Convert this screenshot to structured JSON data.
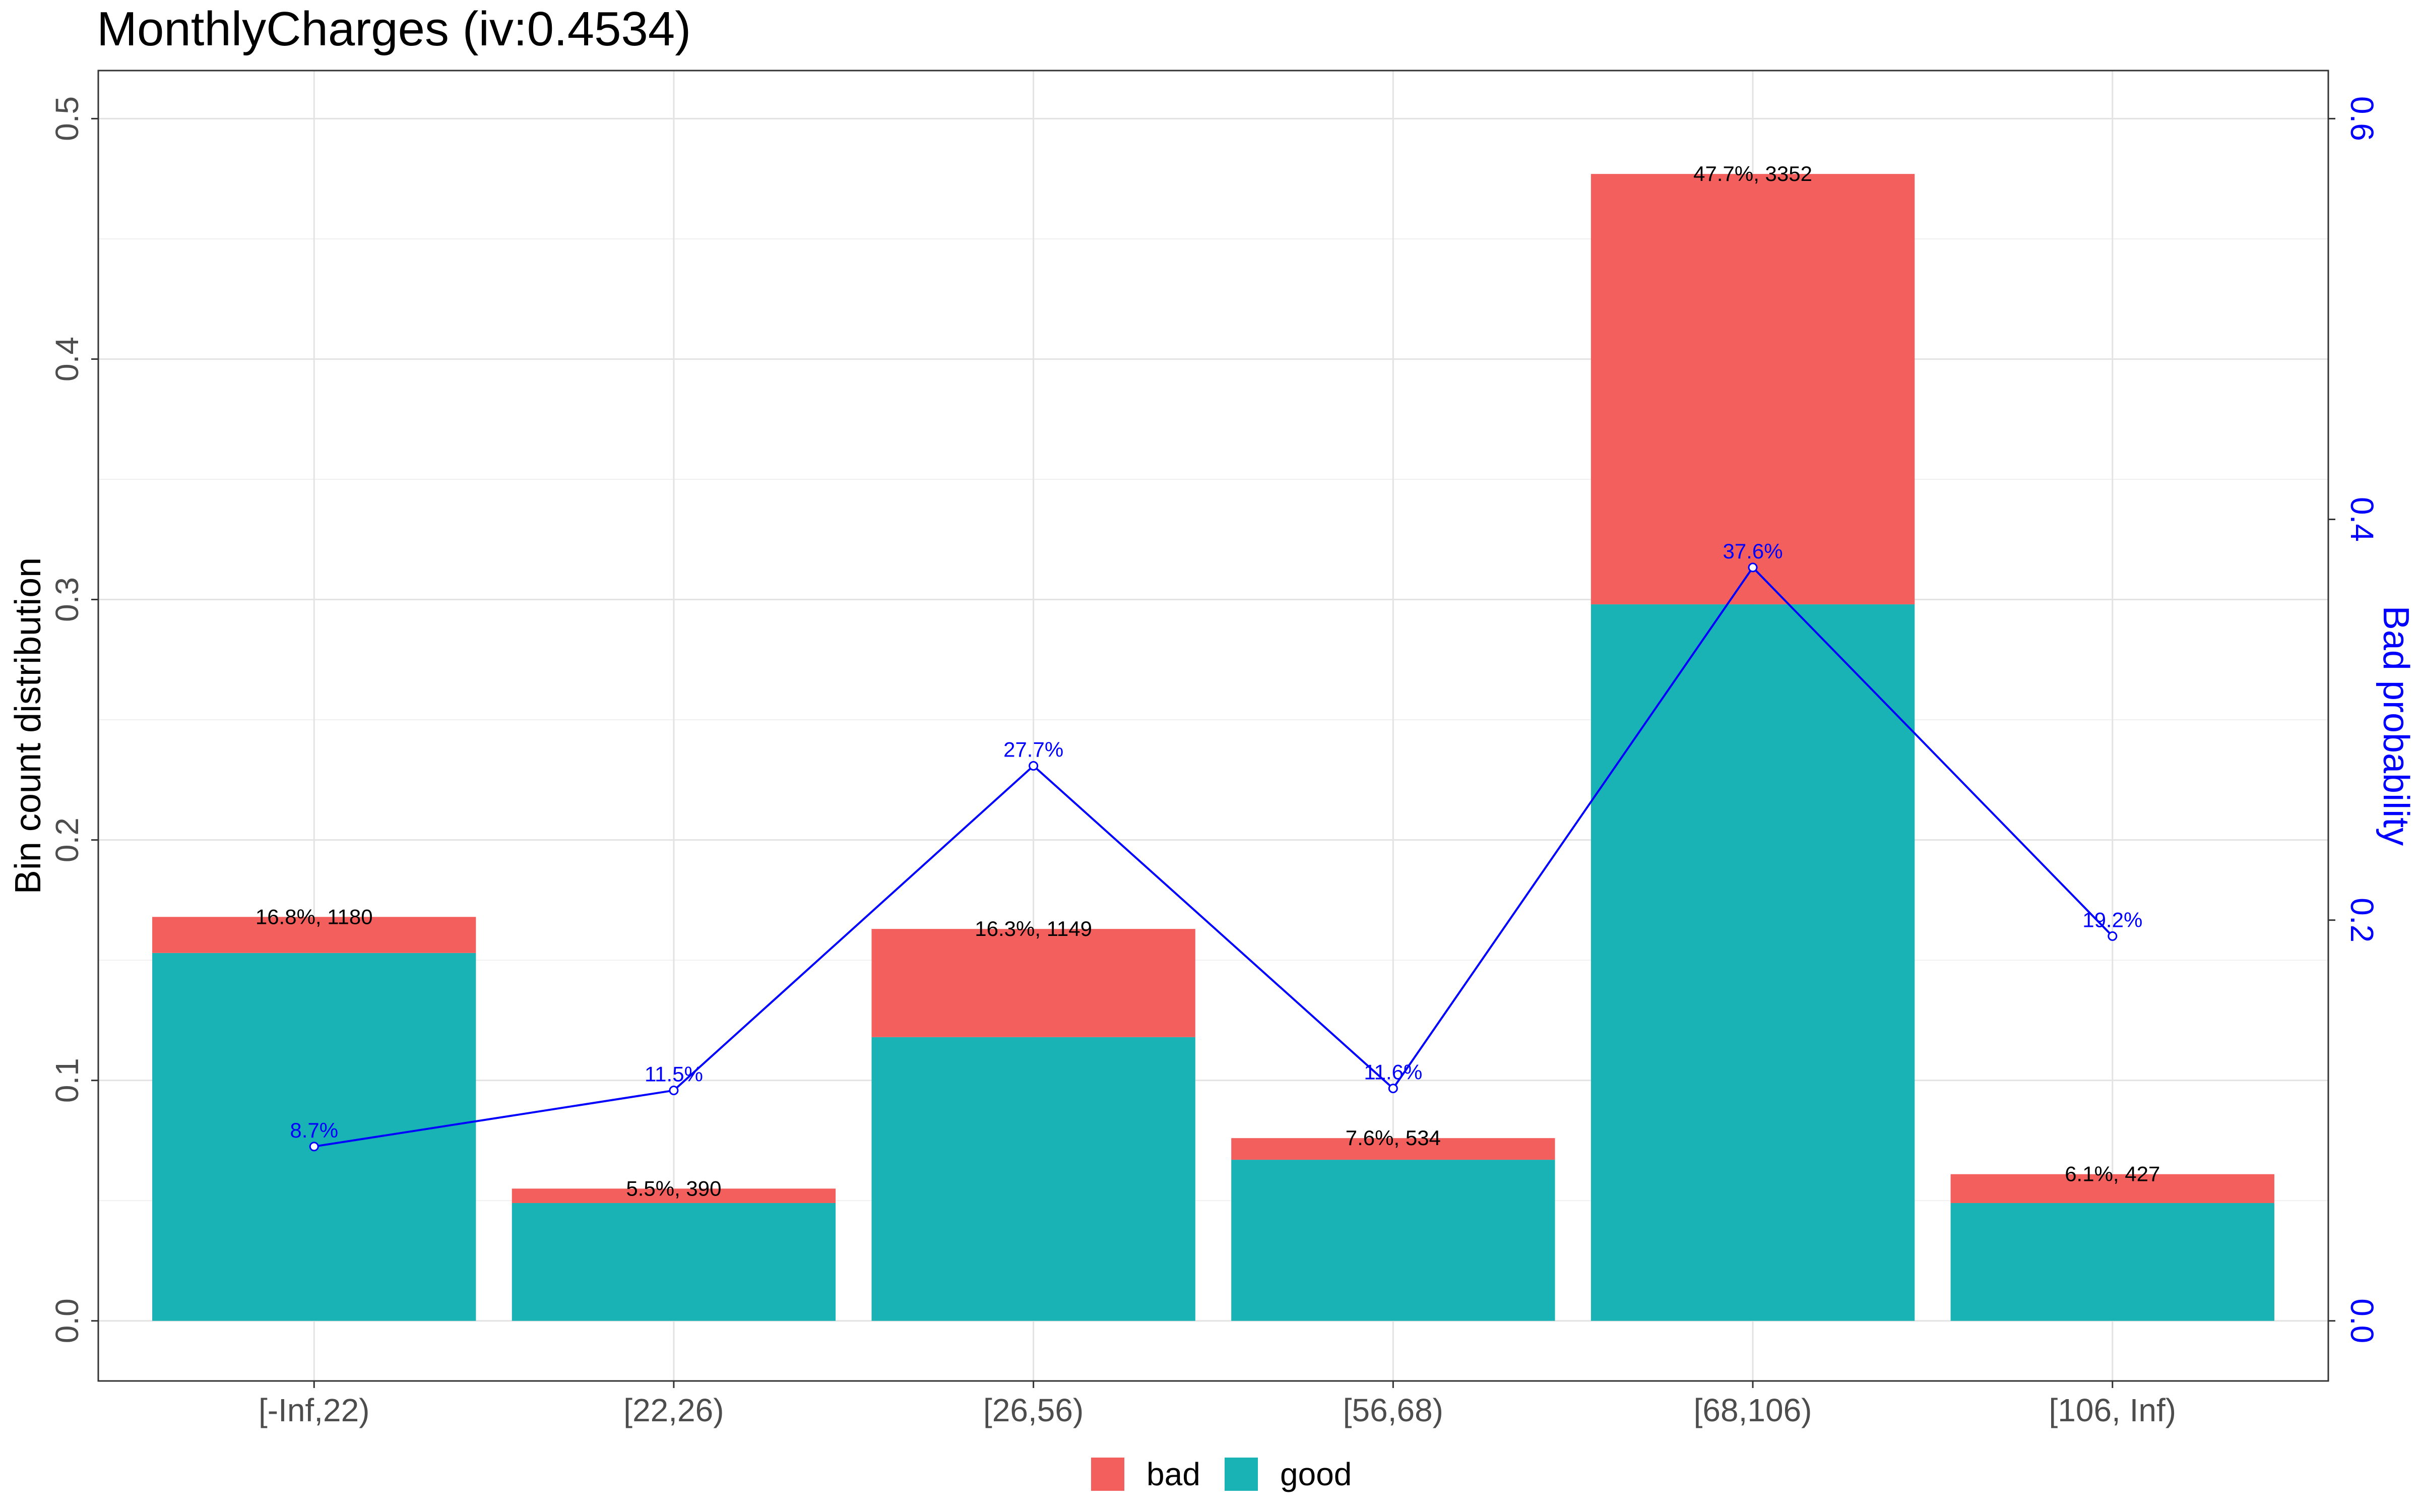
{
  "chart_data": {
    "type": "bar",
    "title": "MonthlyCharges  (iv:0.4534)",
    "ylabel": "Bin count distribution",
    "y2label": "Bad probability",
    "ylim": [
      -0.025,
      0.52
    ],
    "y2lim": [
      -0.03,
      0.624
    ],
    "yticks": [
      "0.0",
      "0.1",
      "0.2",
      "0.3",
      "0.4",
      "0.5"
    ],
    "y2ticks": [
      "0.0",
      "0.2",
      "0.4",
      "0.6"
    ],
    "categories": [
      "[-Inf,22)",
      "[22,26)",
      "[26,56)",
      "[56,68)",
      "[68,106)",
      "[106, Inf)"
    ],
    "series": [
      {
        "name": "good",
        "color": "#19B2B5",
        "values": [
          0.153,
          0.049,
          0.118,
          0.067,
          0.298,
          0.049
        ]
      },
      {
        "name": "bad",
        "color": "#F35F5C",
        "values": [
          0.015,
          0.006,
          0.045,
          0.009,
          0.179,
          0.012
        ]
      }
    ],
    "bar_labels": [
      "16.8%, 1180",
      "5.5%, 390",
      "16.3%, 1149",
      "7.6%, 534",
      "47.7%, 3352",
      "6.1%, 427"
    ],
    "bad_probability": {
      "color": "#0000FF",
      "values": [
        0.087,
        0.115,
        0.277,
        0.116,
        0.376,
        0.192
      ],
      "labels": [
        "8.7%",
        "11.5%",
        "27.7%",
        "11.6%",
        "37.6%",
        "19.2%"
      ]
    },
    "legend": {
      "position": "bottom",
      "entries": [
        "bad",
        "good"
      ]
    },
    "grid": true
  }
}
